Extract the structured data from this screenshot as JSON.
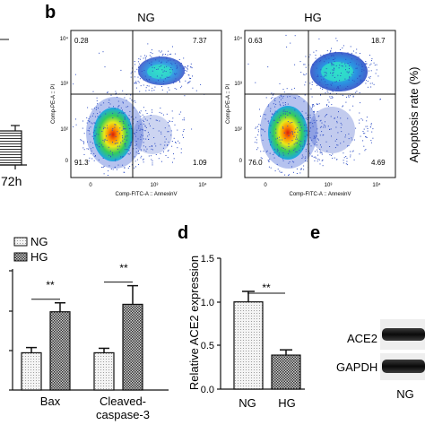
{
  "figure": {
    "panel_b": {
      "letter": "b",
      "plots": [
        {
          "title": "NG",
          "q_ul": "0.28",
          "q_ur": "7.37",
          "q_ll": "91.3",
          "q_lr": "1.09"
        },
        {
          "title": "HG",
          "q_ul": "0.63",
          "q_ur": "18.7",
          "q_ll": "76.0",
          "q_lr": "4.69"
        }
      ],
      "ylabel_1": "Comp-PE-A :: PI",
      "ylabel_2": "Comp-PE-A :: PI",
      "xlabel": "Comp-FITC-A :: AnnexinV",
      "side_label": "Apoptosis rate (%)",
      "ticks": {
        "y": [
          "10⁴",
          "10³",
          "10²",
          "0"
        ],
        "x": [
          "0",
          "10³",
          "10⁴"
        ]
      }
    },
    "panel_a_fragment": {
      "xlabel": "72h"
    },
    "panel_c": {
      "legend": [
        "NG",
        "HG"
      ],
      "sig": [
        "**",
        "**"
      ],
      "categories": [
        "Bax",
        "Cleaved-",
        "caspase-3"
      ]
    },
    "panel_d": {
      "letter": "d",
      "ylabel": "Relative ACE2 expression",
      "yticks": [
        "1.5",
        "1.0",
        "0.5",
        "0.0"
      ],
      "sig": "**",
      "categories": [
        "NG",
        "HG"
      ]
    },
    "panel_e": {
      "letter": "e",
      "bands": [
        "ACE2",
        "GAPDH"
      ],
      "lane": "NG"
    }
  },
  "chart_data": [
    {
      "type": "scatter",
      "title": "NG",
      "xlabel": "Comp-FITC-A :: AnnexinV",
      "ylabel": "Comp-PE-A :: PI",
      "x_scale": "log",
      "y_scale": "log",
      "quadrants": {
        "upper_left": 0.28,
        "upper_right": 7.37,
        "lower_left": 91.3,
        "lower_right": 1.09
      }
    },
    {
      "type": "scatter",
      "title": "HG",
      "xlabel": "Comp-FITC-A :: AnnexinV",
      "ylabel": "Comp-PE-A :: PI",
      "x_scale": "log",
      "y_scale": "log",
      "quadrants": {
        "upper_left": 0.63,
        "upper_right": 18.7,
        "lower_left": 76.0,
        "lower_right": 4.69
      }
    },
    {
      "type": "bar",
      "categories": [
        "Bax",
        "Cleaved-caspase-3"
      ],
      "series": [
        {
          "name": "NG",
          "values": [
            0.5,
            0.5
          ],
          "errors": [
            0.07,
            0.06
          ]
        },
        {
          "name": "HG",
          "values": [
            1.05,
            1.15
          ],
          "errors": [
            0.12,
            0.25
          ]
        }
      ],
      "ylim": [
        0,
        1.6
      ],
      "significance": [
        "**",
        "**"
      ]
    },
    {
      "type": "bar",
      "categories": [
        "NG",
        "HG"
      ],
      "values": [
        1.0,
        0.39
      ],
      "errors": [
        0.12,
        0.06
      ],
      "ylabel": "Relative ACE2 expression",
      "ylim": [
        0,
        1.5
      ],
      "significance": "**"
    }
  ],
  "colors": {
    "ng_fill": "#ebebeb",
    "hg_fill": "#5a5a5a",
    "axis": "#111111",
    "blot_band": "#111111"
  }
}
